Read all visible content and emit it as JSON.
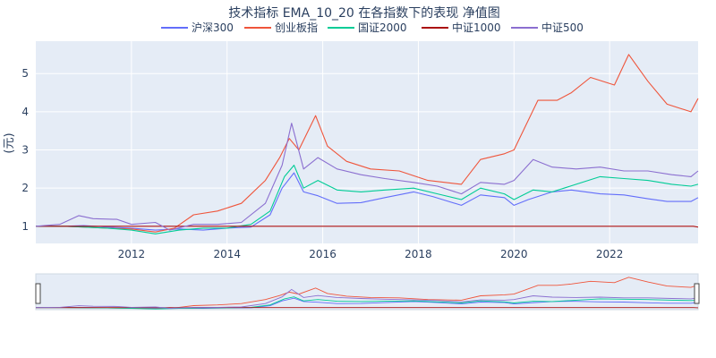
{
  "chart_data": {
    "type": "line",
    "title": "技术指标 EMA_10_20 在各指数下的表现 净值图",
    "xlabel": "",
    "ylabel": "(元)",
    "xlim": [
      2010.0,
      2023.85
    ],
    "ylim": [
      0.55,
      5.85
    ],
    "x_ticks": [
      2012,
      2014,
      2016,
      2018,
      2020,
      2022
    ],
    "y_ticks": [
      1,
      2,
      3,
      4,
      5
    ],
    "grid": true,
    "legend_position": "top-center",
    "background_color": "#e5ecf6",
    "range_slider": true,
    "series": [
      {
        "name": "沪深300",
        "color": "#636efa",
        "points": [
          [
            2010.0,
            1.0
          ],
          [
            2010.6,
            1.0
          ],
          [
            2011.0,
            1.02
          ],
          [
            2011.5,
            0.98
          ],
          [
            2012.0,
            0.95
          ],
          [
            2012.5,
            0.9
          ],
          [
            2013.0,
            0.93
          ],
          [
            2013.5,
            0.9
          ],
          [
            2014.0,
            0.95
          ],
          [
            2014.5,
            0.98
          ],
          [
            2014.9,
            1.3
          ],
          [
            2015.15,
            2.0
          ],
          [
            2015.4,
            2.4
          ],
          [
            2015.6,
            1.9
          ],
          [
            2015.9,
            1.8
          ],
          [
            2016.3,
            1.6
          ],
          [
            2016.8,
            1.62
          ],
          [
            2017.3,
            1.75
          ],
          [
            2017.9,
            1.9
          ],
          [
            2018.3,
            1.78
          ],
          [
            2018.9,
            1.55
          ],
          [
            2019.3,
            1.82
          ],
          [
            2019.8,
            1.75
          ],
          [
            2020.0,
            1.55
          ],
          [
            2020.3,
            1.7
          ],
          [
            2020.8,
            1.9
          ],
          [
            2021.2,
            1.95
          ],
          [
            2021.8,
            1.85
          ],
          [
            2022.3,
            1.82
          ],
          [
            2022.8,
            1.72
          ],
          [
            2023.2,
            1.65
          ],
          [
            2023.7,
            1.65
          ],
          [
            2023.85,
            1.75
          ]
        ]
      },
      {
        "name": "创业板指",
        "color": "#ef553b",
        "points": [
          [
            2010.0,
            1.0
          ],
          [
            2010.6,
            1.0
          ],
          [
            2011.0,
            0.98
          ],
          [
            2011.5,
            0.95
          ],
          [
            2012.0,
            0.93
          ],
          [
            2012.5,
            0.85
          ],
          [
            2012.9,
            0.95
          ],
          [
            2013.3,
            1.3
          ],
          [
            2013.8,
            1.4
          ],
          [
            2014.3,
            1.6
          ],
          [
            2014.8,
            2.2
          ],
          [
            2015.1,
            2.8
          ],
          [
            2015.3,
            3.3
          ],
          [
            2015.5,
            3.0
          ],
          [
            2015.85,
            3.9
          ],
          [
            2016.1,
            3.1
          ],
          [
            2016.5,
            2.7
          ],
          [
            2017.0,
            2.5
          ],
          [
            2017.6,
            2.45
          ],
          [
            2018.2,
            2.2
          ],
          [
            2018.9,
            2.1
          ],
          [
            2019.3,
            2.75
          ],
          [
            2019.8,
            2.9
          ],
          [
            2020.0,
            3.0
          ],
          [
            2020.5,
            4.3
          ],
          [
            2020.9,
            4.3
          ],
          [
            2021.2,
            4.5
          ],
          [
            2021.6,
            4.9
          ],
          [
            2022.1,
            4.7
          ],
          [
            2022.4,
            5.5
          ],
          [
            2022.8,
            4.8
          ],
          [
            2023.2,
            4.2
          ],
          [
            2023.7,
            4.0
          ],
          [
            2023.85,
            4.35
          ]
        ]
      },
      {
        "name": "国证2000",
        "color": "#00cc96",
        "points": [
          [
            2010.0,
            1.0
          ],
          [
            2010.6,
            1.0
          ],
          [
            2011.0,
            0.98
          ],
          [
            2011.5,
            0.95
          ],
          [
            2012.0,
            0.9
          ],
          [
            2012.5,
            0.8
          ],
          [
            2013.0,
            0.9
          ],
          [
            2013.5,
            0.95
          ],
          [
            2014.0,
            0.95
          ],
          [
            2014.5,
            1.05
          ],
          [
            2014.9,
            1.4
          ],
          [
            2015.2,
            2.3
          ],
          [
            2015.4,
            2.6
          ],
          [
            2015.6,
            2.0
          ],
          [
            2015.9,
            2.2
          ],
          [
            2016.3,
            1.95
          ],
          [
            2016.8,
            1.9
          ],
          [
            2017.3,
            1.95
          ],
          [
            2017.9,
            2.0
          ],
          [
            2018.4,
            1.85
          ],
          [
            2018.9,
            1.7
          ],
          [
            2019.3,
            2.0
          ],
          [
            2019.8,
            1.85
          ],
          [
            2020.0,
            1.7
          ],
          [
            2020.4,
            1.95
          ],
          [
            2020.8,
            1.9
          ],
          [
            2021.3,
            2.1
          ],
          [
            2021.8,
            2.3
          ],
          [
            2022.3,
            2.25
          ],
          [
            2022.8,
            2.2
          ],
          [
            2023.3,
            2.1
          ],
          [
            2023.7,
            2.05
          ],
          [
            2023.85,
            2.1
          ]
        ]
      },
      {
        "name": "中证1000",
        "color": "#ab0f0f",
        "points": [
          [
            2010.0,
            1.0
          ],
          [
            2023.75,
            1.0
          ],
          [
            2023.85,
            0.98
          ]
        ]
      },
      {
        "name": "中证500",
        "color": "#8b6fd0",
        "points": [
          [
            2010.0,
            1.0
          ],
          [
            2010.5,
            1.05
          ],
          [
            2010.9,
            1.28
          ],
          [
            2011.2,
            1.2
          ],
          [
            2011.7,
            1.18
          ],
          [
            2012.0,
            1.05
          ],
          [
            2012.5,
            1.1
          ],
          [
            2012.8,
            0.9
          ],
          [
            2013.3,
            1.05
          ],
          [
            2013.8,
            1.05
          ],
          [
            2014.3,
            1.1
          ],
          [
            2014.8,
            1.6
          ],
          [
            2015.15,
            2.6
          ],
          [
            2015.35,
            3.7
          ],
          [
            2015.6,
            2.5
          ],
          [
            2015.9,
            2.8
          ],
          [
            2016.3,
            2.5
          ],
          [
            2016.8,
            2.35
          ],
          [
            2017.3,
            2.25
          ],
          [
            2017.9,
            2.15
          ],
          [
            2018.4,
            2.05
          ],
          [
            2018.9,
            1.85
          ],
          [
            2019.3,
            2.15
          ],
          [
            2019.8,
            2.1
          ],
          [
            2020.0,
            2.2
          ],
          [
            2020.4,
            2.75
          ],
          [
            2020.8,
            2.55
          ],
          [
            2021.3,
            2.5
          ],
          [
            2021.8,
            2.55
          ],
          [
            2022.3,
            2.45
          ],
          [
            2022.8,
            2.45
          ],
          [
            2023.3,
            2.35
          ],
          [
            2023.7,
            2.3
          ],
          [
            2023.85,
            2.45
          ]
        ]
      }
    ]
  }
}
